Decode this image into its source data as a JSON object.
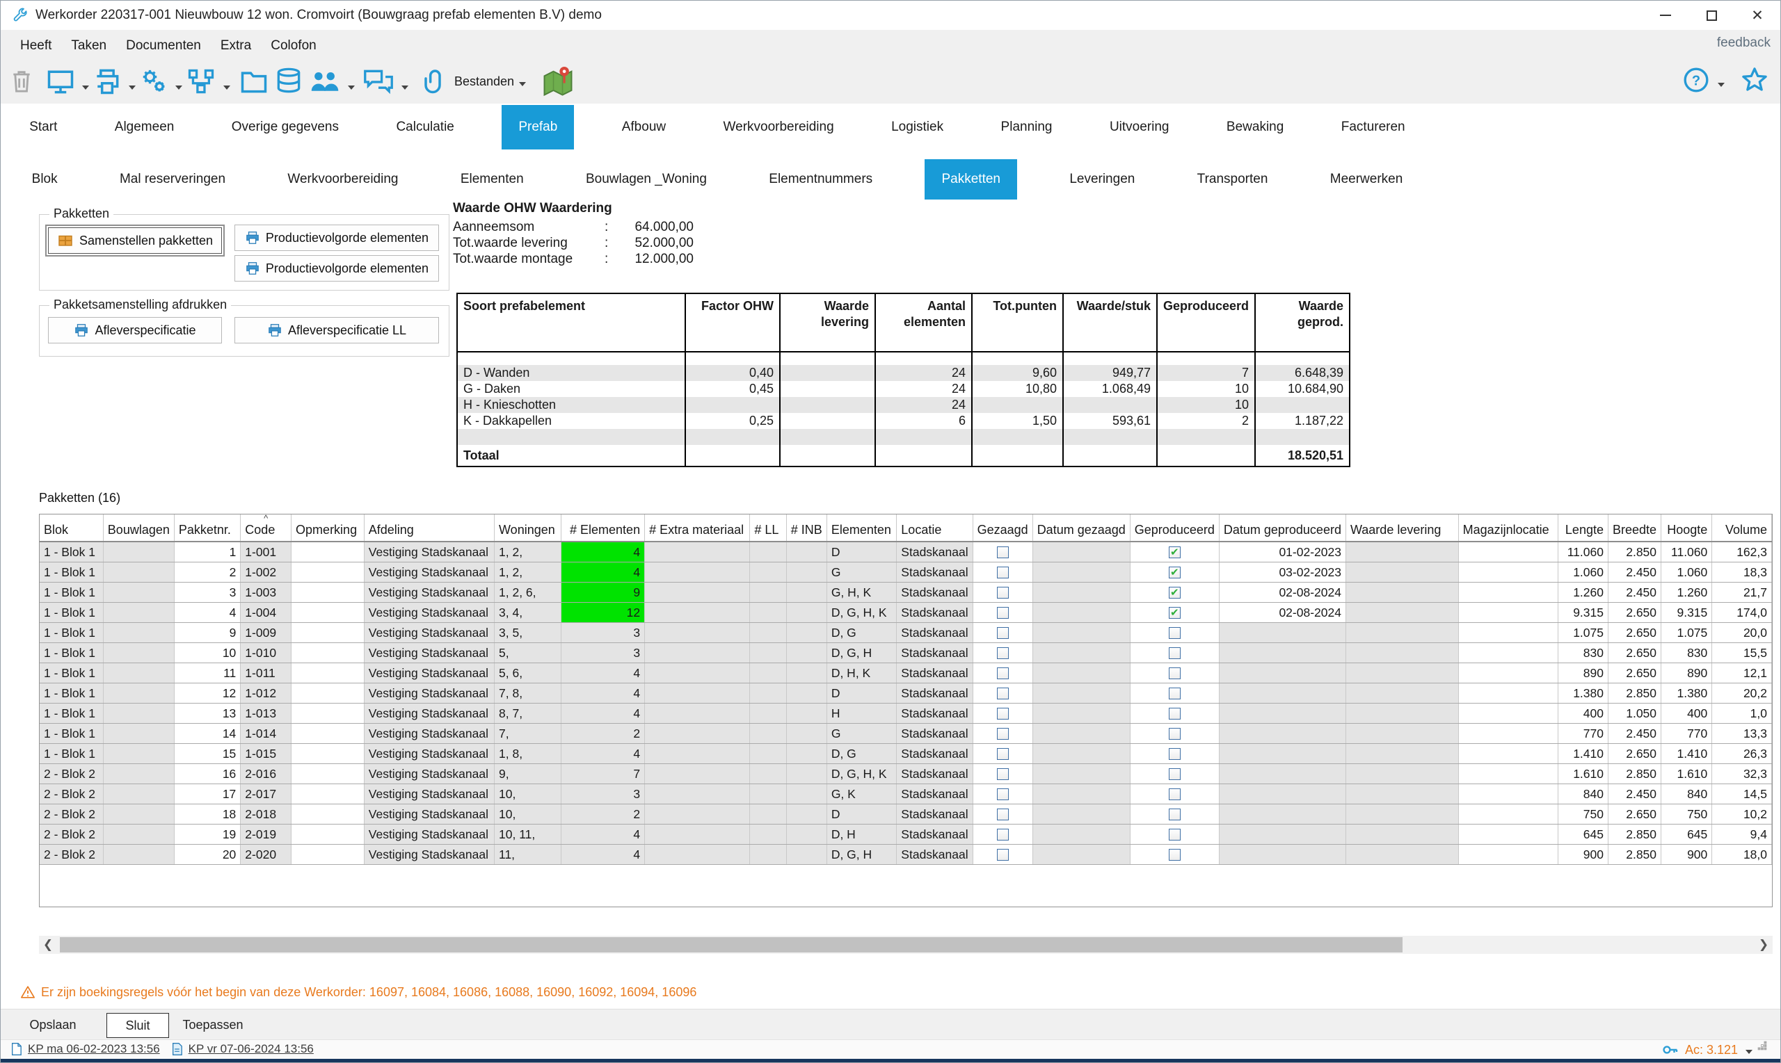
{
  "window": {
    "title": "Werkorder 220317-001 Nieuwbouw 12 won. Cromvoirt (Bouwgraag prefab elementen B.V) demo",
    "feedback_label": "feedback"
  },
  "menu": {
    "items": [
      "Heeft",
      "Taken",
      "Documenten",
      "Extra",
      "Colofon"
    ]
  },
  "toolbar": {
    "bestanden_label": "Bestanden",
    "icons": [
      "trash-icon",
      "display-icon",
      "print-icon",
      "settings-icon",
      "workflow-icon",
      "folder-icon",
      "database-icon",
      "users-icon",
      "chat-icon",
      "paperclip-icon",
      "map-icon",
      "help-icon",
      "favorite-star-icon"
    ]
  },
  "tabs": {
    "main": [
      {
        "label": "Start",
        "active": false
      },
      {
        "label": "Algemeen",
        "active": false
      },
      {
        "label": "Overige gegevens",
        "active": false
      },
      {
        "label": "Calculatie",
        "active": false
      },
      {
        "label": "Prefab",
        "active": true
      },
      {
        "label": "Afbouw",
        "active": false
      },
      {
        "label": "Werkvoorbereiding",
        "active": false
      },
      {
        "label": "Logistiek",
        "active": false
      },
      {
        "label": "Planning",
        "active": false
      },
      {
        "label": "Uitvoering",
        "active": false
      },
      {
        "label": "Bewaking",
        "active": false
      },
      {
        "label": "Factureren",
        "active": false
      }
    ],
    "sub": [
      {
        "label": "Blok",
        "active": false
      },
      {
        "label": "Mal reserveringen",
        "active": false
      },
      {
        "label": "Werkvoorbereiding",
        "active": false
      },
      {
        "label": "Elementen",
        "active": false
      },
      {
        "label": "Bouwlagen _Woning",
        "active": false
      },
      {
        "label": "Elementnummers",
        "active": false
      },
      {
        "label": "Pakketten",
        "active": true
      },
      {
        "label": "Leveringen",
        "active": false
      },
      {
        "label": "Transporten",
        "active": false
      },
      {
        "label": "Meerwerken",
        "active": false
      }
    ]
  },
  "pakketten_panel": {
    "group1_title": "Pakketten",
    "samenstellen_button": "Samenstellen pakketten",
    "productievolgorde_button1": "Productievolgorde elementen",
    "productievolgorde_button2": "Productievolgorde elementen",
    "group2_title": "Pakketsamenstelling afdrukken",
    "afleverspecificatie_button": "Afleverspecificatie",
    "afleverspecificatie_ll_button": "Afleverspecificatie LL"
  },
  "ohw": {
    "title": "Waarde OHW Waardering",
    "rows": [
      {
        "label": "Aanneemsom",
        "sep": ":",
        "value": "64.000,00"
      },
      {
        "label": "Tot.waarde levering",
        "sep": ":",
        "value": "52.000,00"
      },
      {
        "label": "Tot.waarde montage",
        "sep": ":",
        "value": "12.000,00"
      }
    ]
  },
  "summary_table": {
    "headers": [
      "Soort prefabelement",
      "Factor OHW",
      "Waarde levering",
      "Aantal elementen",
      "Tot.punten",
      "Waarde/stuk",
      "Geproduceerd",
      "Waarde geprod."
    ],
    "rows": [
      [
        "D - Wanden",
        "0,40",
        "",
        "24",
        "9,60",
        "949,77",
        "7",
        "6.648,39"
      ],
      [
        "G - Daken",
        "0,45",
        "",
        "24",
        "10,80",
        "1.068,49",
        "10",
        "10.684,90"
      ],
      [
        "H - Knieschotten",
        "",
        "",
        "24",
        "",
        "",
        "10",
        ""
      ],
      [
        "K - Dakkapellen",
        "0,25",
        "",
        "6",
        "1,50",
        "593,61",
        "2",
        "1.187,22"
      ],
      [
        "",
        "",
        "",
        "",
        "",
        "",
        "",
        ""
      ]
    ],
    "total_label": "Totaal",
    "total_value": "18.520,51"
  },
  "pakketten_table": {
    "title": "Pakketten (16)",
    "columns": [
      "Blok",
      "Bouwlagen",
      "Pakketnr.",
      "Code",
      "Opmerking",
      "Afdeling",
      "Woningen",
      "# Elementen",
      "# Extra materiaal",
      "# LL",
      "# INB",
      "Elementen",
      "Locatie",
      "Gezaagd",
      "Datum gezaagd",
      "Geproduceerd",
      "Datum geproduceerd",
      "Waarde levering",
      "Magazijnlocatie",
      "Lengte",
      "Breedte",
      "Hoogte",
      "Volume"
    ],
    "sort_column": "Code",
    "rows": [
      {
        "blok": "1 - Blok 1",
        "bouwlagen": "",
        "pakketnr": "1",
        "code": "1-001",
        "opmerking": "",
        "afdeling": "Vestiging Stadskanaal",
        "woningen": "1, 2,",
        "aantal_elementen": "4",
        "aantal_green": true,
        "extra_materiaal": "",
        "ll": "",
        "inb": "",
        "elementen": "D",
        "locatie": "Stadskanaal",
        "gezaagd": false,
        "datum_gezaagd": "",
        "geproduceerd": true,
        "datum_geproduceerd": "01-02-2023",
        "waarde_levering": "",
        "magazijnlocatie": "",
        "lengte": "11.060",
        "breedte": "2.850",
        "hoogte": "11.060",
        "volume": "162,3"
      },
      {
        "blok": "1 - Blok 1",
        "bouwlagen": "",
        "pakketnr": "2",
        "code": "1-002",
        "opmerking": "",
        "afdeling": "Vestiging Stadskanaal",
        "woningen": "1, 2,",
        "aantal_elementen": "4",
        "aantal_green": true,
        "extra_materiaal": "",
        "ll": "",
        "inb": "",
        "elementen": "G",
        "locatie": "Stadskanaal",
        "gezaagd": false,
        "datum_gezaagd": "",
        "geproduceerd": true,
        "datum_geproduceerd": "03-02-2023",
        "waarde_levering": "",
        "magazijnlocatie": "",
        "lengte": "1.060",
        "breedte": "2.450",
        "hoogte": "1.060",
        "volume": "18,3"
      },
      {
        "blok": "1 - Blok 1",
        "bouwlagen": "",
        "pakketnr": "3",
        "code": "1-003",
        "opmerking": "",
        "afdeling": "Vestiging Stadskanaal",
        "woningen": "1, 2, 6,",
        "aantal_elementen": "9",
        "aantal_green": true,
        "extra_materiaal": "",
        "ll": "",
        "inb": "",
        "elementen": "G, H, K",
        "locatie": "Stadskanaal",
        "gezaagd": false,
        "datum_gezaagd": "",
        "geproduceerd": true,
        "datum_geproduceerd": "02-08-2024",
        "waarde_levering": "",
        "magazijnlocatie": "",
        "lengte": "1.260",
        "breedte": "2.450",
        "hoogte": "1.260",
        "volume": "21,7"
      },
      {
        "blok": "1 - Blok 1",
        "bouwlagen": "",
        "pakketnr": "4",
        "code": "1-004",
        "opmerking": "",
        "afdeling": "Vestiging Stadskanaal",
        "woningen": "3, 4,",
        "aantal_elementen": "12",
        "aantal_green": true,
        "extra_materiaal": "",
        "ll": "",
        "inb": "",
        "elementen": "D, G, H, K",
        "locatie": "Stadskanaal",
        "gezaagd": false,
        "datum_gezaagd": "",
        "geproduceerd": true,
        "datum_geproduceerd": "02-08-2024",
        "waarde_levering": "",
        "magazijnlocatie": "",
        "lengte": "9.315",
        "breedte": "2.650",
        "hoogte": "9.315",
        "volume": "174,0"
      },
      {
        "blok": "1 - Blok 1",
        "bouwlagen": "",
        "pakketnr": "9",
        "code": "1-009",
        "opmerking": "",
        "afdeling": "Vestiging Stadskanaal",
        "woningen": "3, 5,",
        "aantal_elementen": "3",
        "aantal_green": false,
        "extra_materiaal": "",
        "ll": "",
        "inb": "",
        "elementen": "D, G",
        "locatie": "Stadskanaal",
        "gezaagd": false,
        "datum_gezaagd": "",
        "geproduceerd": false,
        "datum_geproduceerd": "",
        "waarde_levering": "",
        "magazijnlocatie": "",
        "lengte": "1.075",
        "breedte": "2.650",
        "hoogte": "1.075",
        "volume": "20,0"
      },
      {
        "blok": "1 - Blok 1",
        "bouwlagen": "",
        "pakketnr": "10",
        "code": "1-010",
        "opmerking": "",
        "afdeling": "Vestiging Stadskanaal",
        "woningen": "5,",
        "aantal_elementen": "3",
        "aantal_green": false,
        "extra_materiaal": "",
        "ll": "",
        "inb": "",
        "elementen": "D, G, H",
        "locatie": "Stadskanaal",
        "gezaagd": false,
        "datum_gezaagd": "",
        "geproduceerd": false,
        "datum_geproduceerd": "",
        "waarde_levering": "",
        "magazijnlocatie": "",
        "lengte": "830",
        "breedte": "2.650",
        "hoogte": "830",
        "volume": "15,5"
      },
      {
        "blok": "1 - Blok 1",
        "bouwlagen": "",
        "pakketnr": "11",
        "code": "1-011",
        "opmerking": "",
        "afdeling": "Vestiging Stadskanaal",
        "woningen": "5, 6,",
        "aantal_elementen": "4",
        "aantal_green": false,
        "extra_materiaal": "",
        "ll": "",
        "inb": "",
        "elementen": "D, H, K",
        "locatie": "Stadskanaal",
        "gezaagd": false,
        "datum_gezaagd": "",
        "geproduceerd": false,
        "datum_geproduceerd": "",
        "waarde_levering": "",
        "magazijnlocatie": "",
        "lengte": "890",
        "breedte": "2.650",
        "hoogte": "890",
        "volume": "12,1"
      },
      {
        "blok": "1 - Blok 1",
        "bouwlagen": "",
        "pakketnr": "12",
        "code": "1-012",
        "opmerking": "",
        "afdeling": "Vestiging Stadskanaal",
        "woningen": "7, 8,",
        "aantal_elementen": "4",
        "aantal_green": false,
        "extra_materiaal": "",
        "ll": "",
        "inb": "",
        "elementen": "D",
        "locatie": "Stadskanaal",
        "gezaagd": false,
        "datum_gezaagd": "",
        "geproduceerd": false,
        "datum_geproduceerd": "",
        "waarde_levering": "",
        "magazijnlocatie": "",
        "lengte": "1.380",
        "breedte": "2.850",
        "hoogte": "1.380",
        "volume": "20,2"
      },
      {
        "blok": "1 - Blok 1",
        "bouwlagen": "",
        "pakketnr": "13",
        "code": "1-013",
        "opmerking": "",
        "afdeling": "Vestiging Stadskanaal",
        "woningen": "8, 7,",
        "aantal_elementen": "4",
        "aantal_green": false,
        "extra_materiaal": "",
        "ll": "",
        "inb": "",
        "elementen": "H",
        "locatie": "Stadskanaal",
        "gezaagd": false,
        "datum_gezaagd": "",
        "geproduceerd": false,
        "datum_geproduceerd": "",
        "waarde_levering": "",
        "magazijnlocatie": "",
        "lengte": "400",
        "breedte": "1.050",
        "hoogte": "400",
        "volume": "1,0"
      },
      {
        "blok": "1 - Blok 1",
        "bouwlagen": "",
        "pakketnr": "14",
        "code": "1-014",
        "opmerking": "",
        "afdeling": "Vestiging Stadskanaal",
        "woningen": "7,",
        "aantal_elementen": "2",
        "aantal_green": false,
        "extra_materiaal": "",
        "ll": "",
        "inb": "",
        "elementen": "G",
        "locatie": "Stadskanaal",
        "gezaagd": false,
        "datum_gezaagd": "",
        "geproduceerd": false,
        "datum_geproduceerd": "",
        "waarde_levering": "",
        "magazijnlocatie": "",
        "lengte": "770",
        "breedte": "2.450",
        "hoogte": "770",
        "volume": "13,3"
      },
      {
        "blok": "1 - Blok 1",
        "bouwlagen": "",
        "pakketnr": "15",
        "code": "1-015",
        "opmerking": "",
        "afdeling": "Vestiging Stadskanaal",
        "woningen": "1, 8,",
        "aantal_elementen": "4",
        "aantal_green": false,
        "extra_materiaal": "",
        "ll": "",
        "inb": "",
        "elementen": "D, G",
        "locatie": "Stadskanaal",
        "gezaagd": false,
        "datum_gezaagd": "",
        "geproduceerd": false,
        "datum_geproduceerd": "",
        "waarde_levering": "",
        "magazijnlocatie": "",
        "lengte": "1.410",
        "breedte": "2.650",
        "hoogte": "1.410",
        "volume": "26,3"
      },
      {
        "blok": "2 - Blok 2",
        "bouwlagen": "",
        "pakketnr": "16",
        "code": "2-016",
        "opmerking": "",
        "afdeling": "Vestiging Stadskanaal",
        "woningen": "9,",
        "aantal_elementen": "7",
        "aantal_green": false,
        "extra_materiaal": "",
        "ll": "",
        "inb": "",
        "elementen": "D, G, H, K",
        "locatie": "Stadskanaal",
        "gezaagd": false,
        "datum_gezaagd": "",
        "geproduceerd": false,
        "datum_geproduceerd": "",
        "waarde_levering": "",
        "magazijnlocatie": "",
        "lengte": "1.610",
        "breedte": "2.850",
        "hoogte": "1.610",
        "volume": "32,3"
      },
      {
        "blok": "2 - Blok 2",
        "bouwlagen": "",
        "pakketnr": "17",
        "code": "2-017",
        "opmerking": "",
        "afdeling": "Vestiging Stadskanaal",
        "woningen": "10,",
        "aantal_elementen": "3",
        "aantal_green": false,
        "extra_materiaal": "",
        "ll": "",
        "inb": "",
        "elementen": "G, K",
        "locatie": "Stadskanaal",
        "gezaagd": false,
        "datum_gezaagd": "",
        "geproduceerd": false,
        "datum_geproduceerd": "",
        "waarde_levering": "",
        "magazijnlocatie": "",
        "lengte": "840",
        "breedte": "2.450",
        "hoogte": "840",
        "volume": "14,5"
      },
      {
        "blok": "2 - Blok 2",
        "bouwlagen": "",
        "pakketnr": "18",
        "code": "2-018",
        "opmerking": "",
        "afdeling": "Vestiging Stadskanaal",
        "woningen": "10,",
        "aantal_elementen": "2",
        "aantal_green": false,
        "extra_materiaal": "",
        "ll": "",
        "inb": "",
        "elementen": "D",
        "locatie": "Stadskanaal",
        "gezaagd": false,
        "datum_gezaagd": "",
        "geproduceerd": false,
        "datum_geproduceerd": "",
        "waarde_levering": "",
        "magazijnlocatie": "",
        "lengte": "750",
        "breedte": "2.650",
        "hoogte": "750",
        "volume": "10,2"
      },
      {
        "blok": "2 - Blok 2",
        "bouwlagen": "",
        "pakketnr": "19",
        "code": "2-019",
        "opmerking": "",
        "afdeling": "Vestiging Stadskanaal",
        "woningen": "10, 11,",
        "aantal_elementen": "4",
        "aantal_green": false,
        "extra_materiaal": "",
        "ll": "",
        "inb": "",
        "elementen": "D, H",
        "locatie": "Stadskanaal",
        "gezaagd": false,
        "datum_gezaagd": "",
        "geproduceerd": false,
        "datum_geproduceerd": "",
        "waarde_levering": "",
        "magazijnlocatie": "",
        "lengte": "645",
        "breedte": "2.850",
        "hoogte": "645",
        "volume": "9,4"
      },
      {
        "blok": "2 - Blok 2",
        "bouwlagen": "",
        "pakketnr": "20",
        "code": "2-020",
        "opmerking": "",
        "afdeling": "Vestiging Stadskanaal",
        "woningen": "11,",
        "aantal_elementen": "4",
        "aantal_green": false,
        "extra_materiaal": "",
        "ll": "",
        "inb": "",
        "elementen": "D, G, H",
        "locatie": "Stadskanaal",
        "gezaagd": false,
        "datum_gezaagd": "",
        "geproduceerd": false,
        "datum_geproduceerd": "",
        "waarde_levering": "",
        "magazijnlocatie": "",
        "lengte": "900",
        "breedte": "2.850",
        "hoogte": "900",
        "volume": "18,0"
      }
    ]
  },
  "warning": {
    "text": "Er zijn boekingsregels vóór het begin van deze Werkorder: 16097, 16084, 16086, 16088, 16090, 16092, 16094, 16096"
  },
  "footer": {
    "opslaan": "Opslaan",
    "sluit": "Sluit",
    "toepassen": "Toepassen"
  },
  "statusbar": {
    "link1": "KP ma 06-02-2023 13:56",
    "link2": "KP vr 07-06-2024 13:56",
    "ac": "Ac: 3.121"
  },
  "colors": {
    "accent": "#189bd7",
    "green_cell": "#00e300",
    "warning_orange": "#e87a1e",
    "icon_blue": "#2599d5"
  }
}
